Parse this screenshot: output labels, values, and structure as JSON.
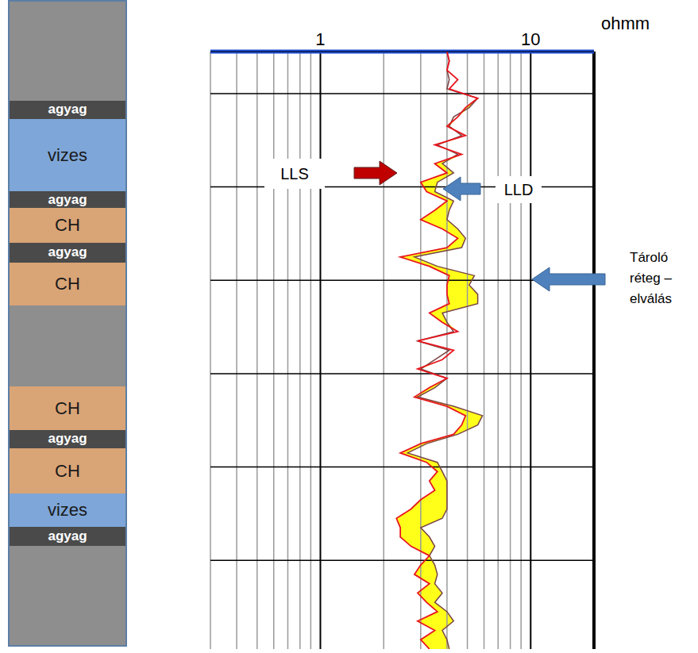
{
  "chart_data": {
    "type": "line",
    "log": "x",
    "grid": true,
    "tick_labels": "x",
    "xlabel": "ohmm",
    "xlim": [
      0.3,
      20
    ],
    "xticks": [
      1,
      10
    ],
    "ylim": [
      0,
      64
    ],
    "yticks": [
      9.5,
      19.5,
      29.5,
      39.5,
      49.5,
      59.5
    ],
    "y": [
      0,
      1,
      2,
      3,
      4,
      5,
      6,
      7,
      8,
      9,
      10,
      11,
      12,
      13,
      14,
      15,
      16,
      17,
      18,
      19,
      20,
      21,
      22,
      23,
      24,
      25,
      26,
      27,
      28,
      29,
      30,
      31,
      32,
      33,
      34,
      35,
      36,
      37,
      38,
      39,
      40,
      41,
      42,
      43,
      44,
      45,
      46,
      47,
      48,
      49,
      50,
      51,
      52,
      53,
      54,
      55,
      56,
      57,
      58,
      59,
      60,
      61,
      62,
      63,
      64
    ],
    "series": [
      {
        "name": "LLS",
        "color": "#e8161e",
        "values": [
          3.3,
          3.0,
          3.5,
          2.9,
          3.6,
          3.2,
          2.9,
          3.3,
          2.8,
          3.0,
          3.3,
          2.7,
          2.4,
          2.4,
          2.3,
          2.7,
          3.0,
          3.5,
          3.3,
          3.6,
          3.2,
          2.4,
          3.0,
          4.3,
          4.7,
          4.9,
          4.0,
          2.8,
          3.3,
          4.0,
          2.9,
          3.8,
          4.3,
          2.9,
          4.5,
          3.8,
          3.3,
          4.1,
          4.0,
          4.0,
          4.1,
          3.3,
          2.4,
          4.0,
          4.5,
          3.8,
          3.0,
          3.5,
          4.0,
          3.2,
          3.0,
          4.0,
          3.5,
          4.7,
          3.5,
          4.9,
          4.0,
          4.5,
          4.9,
          5.6,
          4.1,
          4.5,
          4.0,
          4.1,
          4.0
        ]
      },
      {
        "name": "LLD",
        "color": "#7a4444",
        "values": [
          4.1,
          4.0,
          3.8,
          4.3,
          4.0,
          3.5,
          3.8,
          3.5,
          3.6,
          3.5,
          3.3,
          3.5,
          3.3,
          3.0,
          3.8,
          4.0,
          4.0,
          4.0,
          4.0,
          3.8,
          3.6,
          2.6,
          3.2,
          4.5,
          5.6,
          5.9,
          4.3,
          2.9,
          3.5,
          4.0,
          3.0,
          3.5,
          4.1,
          2.9,
          4.3,
          4.0,
          3.8,
          5.6,
          5.6,
          5.1,
          5.4,
          3.6,
          2.8,
          4.7,
          4.9,
          4.5,
          4.0,
          4.1,
          4.3,
          3.5,
          3.6,
          4.3,
          3.8,
          4.5,
          3.6,
          4.7,
          4.1,
          4.3,
          5.1,
          5.6,
          4.0,
          4.1,
          4.0,
          4.1,
          4.0
        ]
      }
    ],
    "annotations": [
      {
        "text": "Tároló réteg – elválás"
      }
    ]
  },
  "lithology": {
    "layers": [
      {
        "label": null,
        "top": 0,
        "bottom": 9.8
      },
      {
        "label": "agyag",
        "top": 9.8,
        "bottom": 11.6
      },
      {
        "label": "vizes",
        "top": 11.6,
        "bottom": 18.8
      },
      {
        "label": "agyag",
        "top": 18.8,
        "bottom": 20.4
      },
      {
        "label": "CH",
        "top": 20.4,
        "bottom": 23.9
      },
      {
        "label": "agyag",
        "top": 23.9,
        "bottom": 25.8
      },
      {
        "label": "CH",
        "top": 25.8,
        "bottom": 30.1
      },
      {
        "label": null,
        "top": 30.1,
        "bottom": 38.1
      },
      {
        "label": "CH",
        "top": 38.1,
        "bottom": 42.4
      },
      {
        "label": "agyag",
        "top": 42.4,
        "bottom": 44.2
      },
      {
        "label": "CH",
        "top": 44.2,
        "bottom": 48.7
      },
      {
        "label": "vizes",
        "top": 48.7,
        "bottom": 52.0
      },
      {
        "label": "agyag",
        "top": 52.0,
        "bottom": 53.9
      },
      {
        "label": null,
        "top": 53.9,
        "bottom": 64
      }
    ]
  }
}
